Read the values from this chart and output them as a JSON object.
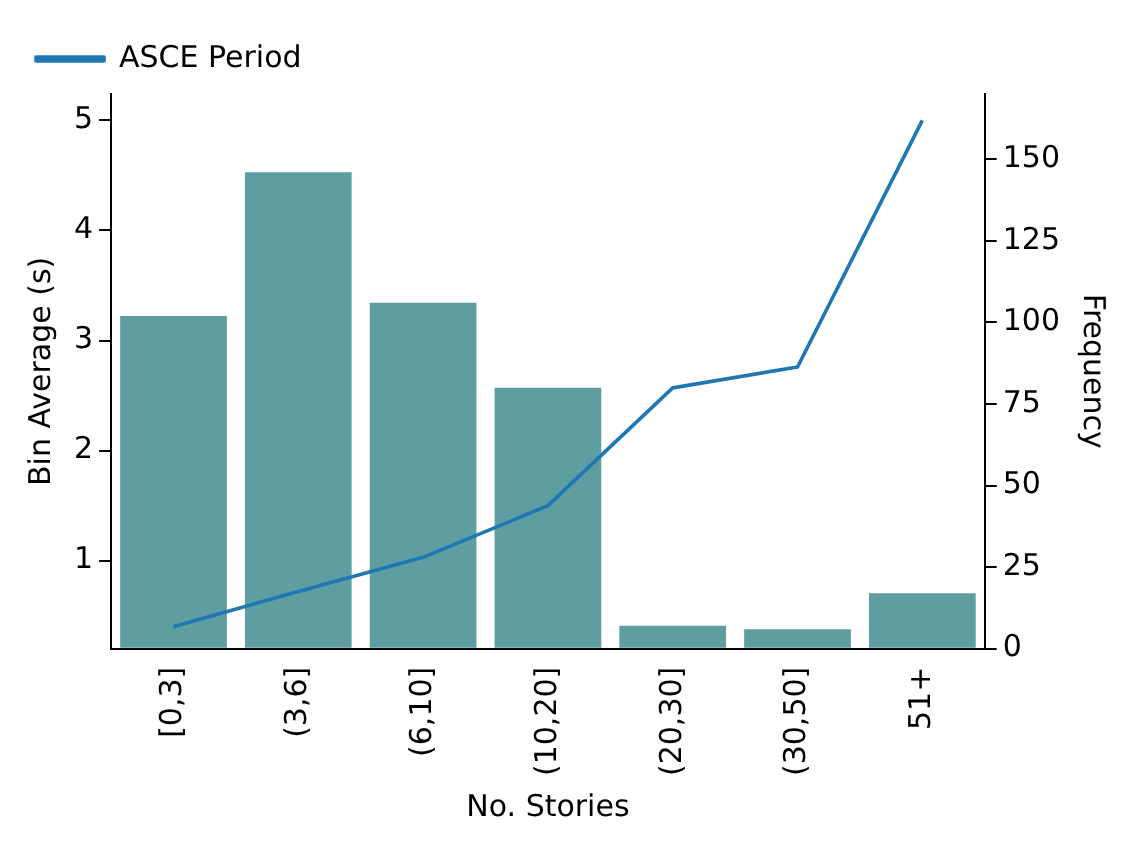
{
  "chart_data": {
    "type": "bar",
    "xlabel": "No. Stories",
    "ylabel": "Bin Average (s)",
    "y2label": "Frequency",
    "categories": [
      "[0,3]",
      "(3,6]",
      "(6,10]",
      "(10,20]",
      "(20,30]",
      "(30,50]",
      "51+"
    ],
    "series": [
      {
        "axis": "y2",
        "color": "#5f9ea0",
        "values": [
          102,
          146,
          106,
          80,
          7,
          6,
          17
        ]
      },
      {
        "type": "line",
        "axis": "y",
        "name": "ASCE Period",
        "color": "#1f77b4",
        "values": [
          0.4,
          0.72,
          1.03,
          1.5,
          2.57,
          2.76,
          5.0
        ]
      }
    ],
    "ylim": [
      0.2,
      5.24
    ],
    "yticks": [
      1,
      2,
      3,
      4,
      5
    ],
    "y2lim": [
      0,
      170
    ],
    "y2ticks": [
      0,
      25,
      50,
      75,
      100,
      125,
      150
    ],
    "grid": false,
    "legend": "top left",
    "marker": "none",
    "line_style": "solid"
  }
}
